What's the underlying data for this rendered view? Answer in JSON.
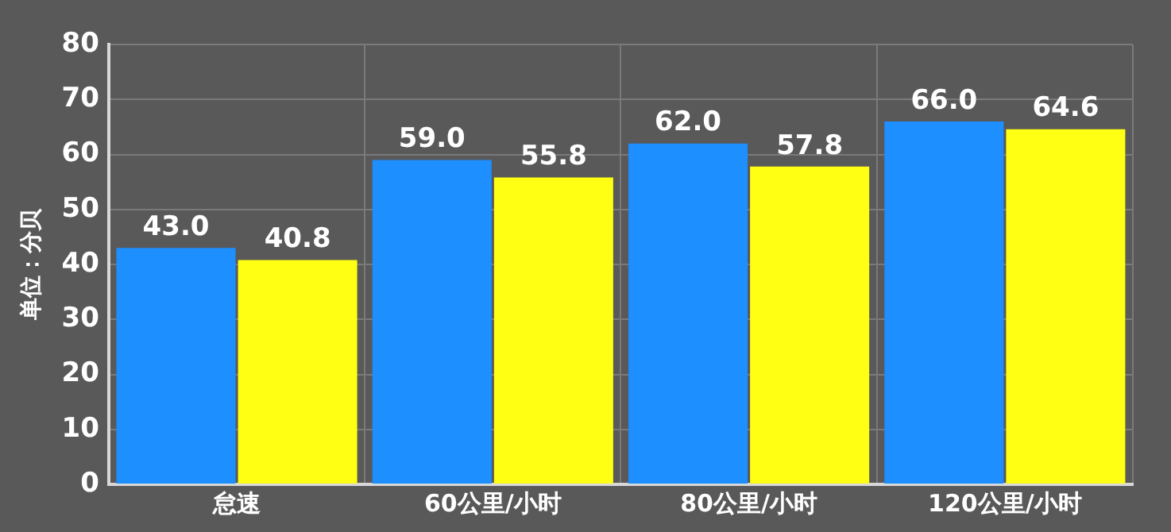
{
  "chart_data": {
    "type": "bar",
    "ylabel": "单位：分贝",
    "categories": [
      "怠速",
      "60公里/小时",
      "80公里/小时",
      "120公里/小时"
    ],
    "series": [
      {
        "color": "#1e8fff",
        "values": [
          43.0,
          59.0,
          62.0,
          66.0
        ],
        "value_labels": [
          "43.0",
          "59.0",
          "62.0",
          "66.0"
        ]
      },
      {
        "color": "#ffff14",
        "values": [
          40.8,
          55.8,
          57.8,
          64.6
        ],
        "value_labels": [
          "40.8",
          "55.8",
          "57.8",
          "64.6"
        ]
      }
    ],
    "ylim": [
      0,
      80
    ],
    "yticks": [
      0,
      10,
      20,
      30,
      40,
      50,
      60,
      70,
      80
    ],
    "grid": true,
    "legend": false
  }
}
